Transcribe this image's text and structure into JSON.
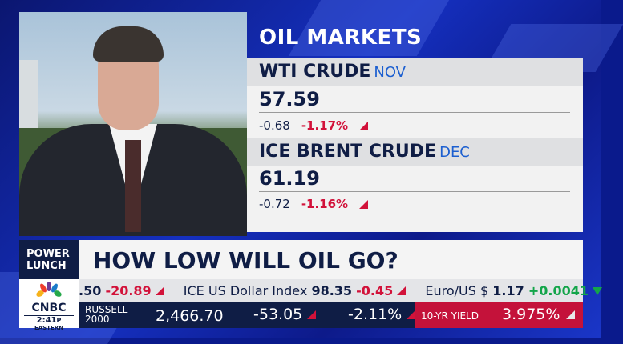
{
  "panel": {
    "title": "OIL MARKETS",
    "quotes": [
      {
        "name": "WTI CRUDE",
        "contract": "NOV",
        "price": "57.59",
        "change": "-0.68",
        "pct": "-1.17%",
        "direction": "down"
      },
      {
        "name": "ICE BRENT CRUDE",
        "contract": "DEC",
        "price": "61.19",
        "change": "-0.72",
        "pct": "-1.16%",
        "direction": "down"
      }
    ]
  },
  "lower_third": {
    "show": "POWER LUNCH",
    "show_line1": "POWER",
    "show_line2": "LUNCH",
    "headline": "HOW LOW WILL OIL GO?"
  },
  "logo": {
    "network": "CNBC",
    "time": "2:41",
    "ampm": "P",
    "zone": "EASTERN"
  },
  "ticker": [
    {
      "name": "",
      "value": ".50",
      "change": "-20.89",
      "direction": "down"
    },
    {
      "name": "ICE US Dollar Index",
      "value": "98.35",
      "change": "-0.45",
      "direction": "down"
    },
    {
      "name": "Euro/US $",
      "value": "1.17",
      "change": "+0.0041",
      "direction": "up"
    }
  ],
  "index": {
    "name_line1": "RUSSELL",
    "name_line2": "2000",
    "value": "2,466.70",
    "change": "-53.05",
    "pct": "-2.11%"
  },
  "yield": {
    "label": "10-YR YIELD",
    "value": "3.975%"
  },
  "colors": {
    "navy": "#0f1d45",
    "red": "#d2123a",
    "green": "#13a54a",
    "blue_accent": "#1c5fd0"
  }
}
